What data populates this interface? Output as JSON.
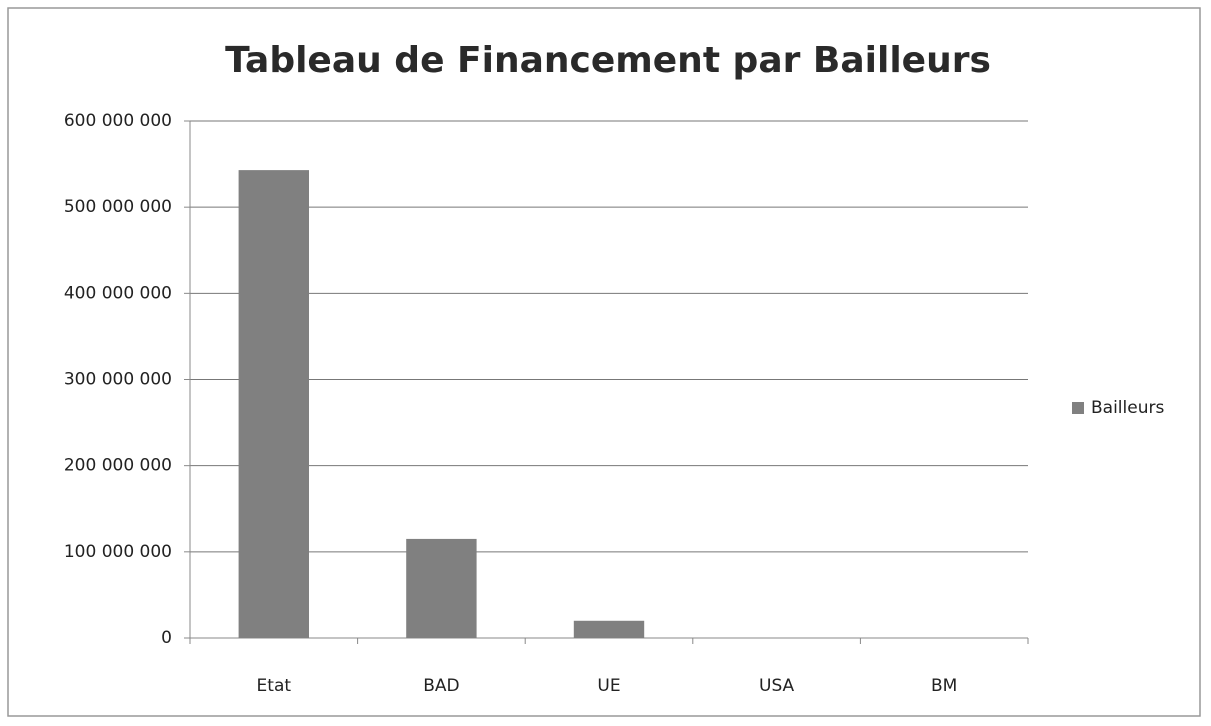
{
  "chart_data": {
    "type": "bar",
    "title": "Tableau de Financement par Bailleurs",
    "categories": [
      "Etat",
      "BAD",
      "UE",
      "USA",
      "BM"
    ],
    "series": [
      {
        "name": "Bailleurs",
        "color": "#808080",
        "values": [
          543000000,
          115000000,
          20000000,
          0,
          0
        ]
      }
    ],
    "ylim": [
      0,
      600000000
    ],
    "yticks": [
      0,
      {
        "value": 100000000,
        "label": "100 000 000"
      },
      {
        "value": 200000000,
        "label": "200 000 000"
      },
      {
        "value": 300000000,
        "label": "300 000 000"
      },
      {
        "value": 400000000,
        "label": "400 000 000"
      },
      {
        "value": 500000000,
        "label": "500 000 000"
      },
      {
        "value": 600000000,
        "label": "600 000 000"
      }
    ],
    "grid": true,
    "legend": "right"
  }
}
